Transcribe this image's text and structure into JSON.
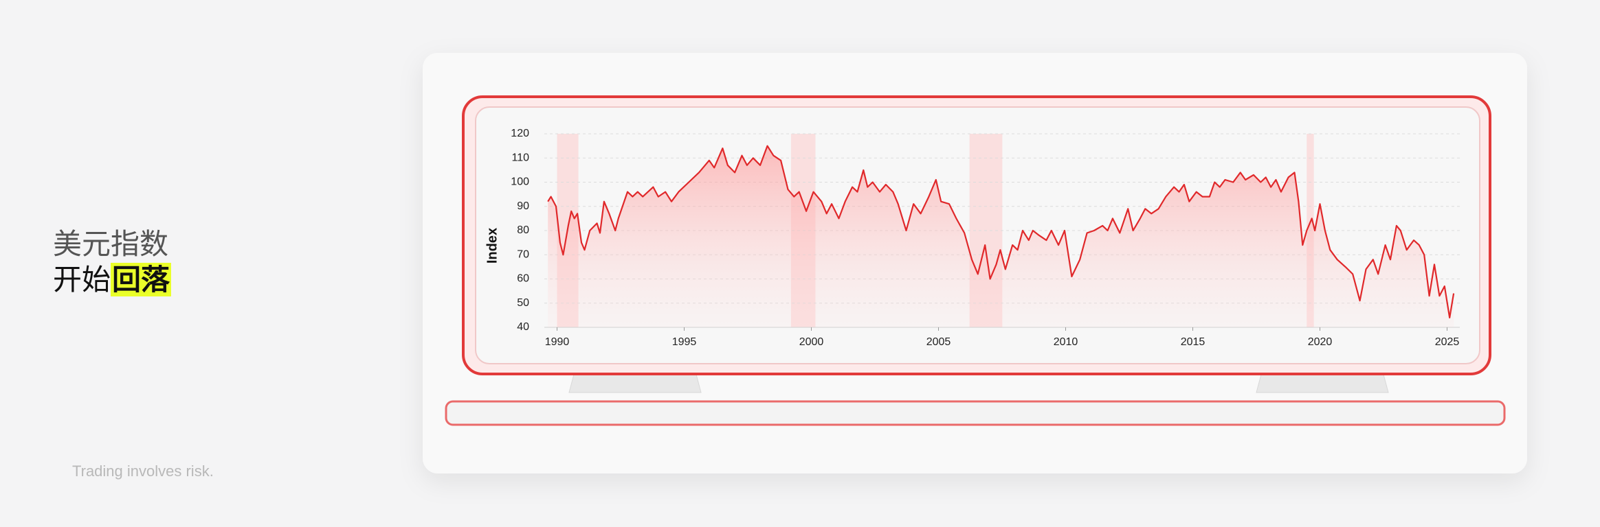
{
  "headline": {
    "line1": "美元指数",
    "line2_prefix": "开始",
    "line2_highlight": "回落"
  },
  "disclaimer": "Trading involves risk.",
  "chart_data": {
    "type": "line",
    "ylabel": "Index",
    "color": "#e0282a",
    "xlim": [
      1989.5,
      2025.5
    ],
    "xticks": [
      1990,
      1995,
      2000,
      2005,
      2010,
      2015,
      2020,
      2025
    ],
    "ylim": [
      40,
      120
    ],
    "yticks": [
      40,
      50,
      60,
      70,
      80,
      90,
      100,
      110,
      120
    ],
    "grid": true,
    "highlight_ranges": [
      [
        1990.0,
        1990.84
      ],
      [
        1999.2,
        2000.16
      ],
      [
        2006.22,
        2007.51
      ],
      [
        2019.48,
        2019.76
      ]
    ],
    "x": [
      1989.64,
      1989.76,
      1989.96,
      1990.12,
      1990.24,
      1990.44,
      1990.56,
      1990.68,
      1990.8,
      1990.96,
      1991.08,
      1991.29,
      1991.57,
      1991.69,
      1991.85,
      1992.05,
      1992.29,
      1992.41,
      1992.77,
      1992.97,
      1993.17,
      1993.37,
      1993.78,
      1993.98,
      1994.26,
      1994.5,
      1994.78,
      1995.18,
      1995.58,
      1995.98,
      1996.18,
      1996.51,
      1996.71,
      1996.99,
      1997.27,
      1997.47,
      1997.71,
      1997.99,
      1998.27,
      1998.51,
      1998.8,
      1999.08,
      1999.32,
      1999.52,
      1999.8,
      2000.08,
      2000.4,
      2000.6,
      2000.8,
      2001.08,
      2001.33,
      2001.61,
      2001.81,
      2002.05,
      2002.21,
      2002.41,
      2002.69,
      2002.93,
      2003.21,
      2003.41,
      2003.73,
      2004.02,
      2004.3,
      2004.62,
      2004.9,
      2005.1,
      2005.42,
      2005.7,
      2006.02,
      2006.31,
      2006.55,
      2006.83,
      2007.03,
      2007.27,
      2007.43,
      2007.63,
      2007.91,
      2008.11,
      2008.31,
      2008.55,
      2008.71,
      2008.96,
      2009.24,
      2009.44,
      2009.72,
      2009.96,
      2010.24,
      2010.56,
      2010.84,
      2011.12,
      2011.45,
      2011.65,
      2011.85,
      2012.13,
      2012.45,
      2012.65,
      2012.93,
      2013.13,
      2013.37,
      2013.65,
      2013.94,
      2014.26,
      2014.46,
      2014.66,
      2014.86,
      2015.14,
      2015.38,
      2015.66,
      2015.86,
      2016.06,
      2016.27,
      2016.59,
      2016.87,
      2017.07,
      2017.39,
      2017.67,
      2017.87,
      2018.07,
      2018.27,
      2018.47,
      2018.76,
      2019.0,
      2019.16,
      2019.32,
      2019.48,
      2019.68,
      2019.8,
      2020.0,
      2020.2,
      2020.4,
      2020.68,
      2021.0,
      2021.29,
      2021.57,
      2021.81,
      2022.09,
      2022.29,
      2022.57,
      2022.77,
      2023.01,
      2023.17,
      2023.41,
      2023.69,
      2023.9,
      2024.1,
      2024.3,
      2024.5,
      2024.7,
      2024.9,
      2025.1,
      2025.26
    ],
    "values": [
      92,
      94,
      90,
      75,
      70,
      82,
      88,
      85,
      87,
      75,
      72,
      80,
      83,
      79,
      92,
      87,
      80,
      85,
      96,
      94,
      96,
      94,
      98,
      94,
      96,
      92,
      96,
      100,
      104,
      109,
      106,
      114,
      107,
      104,
      111,
      107,
      110,
      107,
      115,
      111,
      109,
      97,
      94,
      96,
      88,
      96,
      92,
      87,
      91,
      85,
      92,
      98,
      96,
      105,
      98,
      100,
      96,
      99,
      96,
      91,
      80,
      91,
      87,
      94,
      101,
      92,
      91,
      85,
      79,
      68,
      62,
      74,
      60,
      66,
      72,
      64,
      74,
      72,
      80,
      76,
      80,
      78,
      76,
      80,
      74,
      80,
      61,
      68,
      79,
      80,
      82,
      80,
      85,
      79,
      89,
      80,
      85,
      89,
      87,
      89,
      94,
      98,
      96,
      99,
      92,
      96,
      94,
      94,
      100,
      98,
      101,
      100,
      104,
      101,
      103,
      100,
      102,
      98,
      101,
      96,
      102,
      104,
      92,
      74,
      80,
      85,
      80,
      91,
      80,
      72,
      68,
      65,
      62,
      51,
      64,
      68,
      62,
      74,
      68,
      82,
      80,
      72,
      76,
      74,
      70,
      53,
      66,
      53,
      57,
      44,
      54
    ]
  }
}
